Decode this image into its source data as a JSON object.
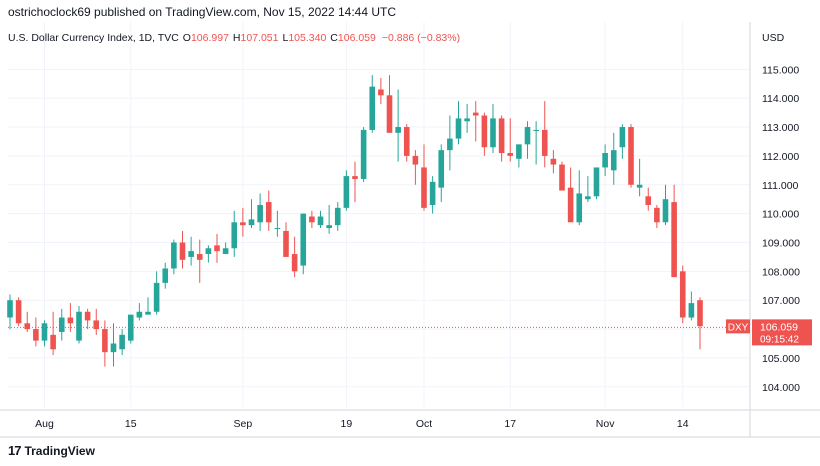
{
  "header": {
    "publisher_line": "ostrichoclock69 published on TradingView.com, Nov 15, 2022 14:44 UTC"
  },
  "footer": {
    "brand": "TradingView",
    "logo_icon": "tradingview-logo-icon"
  },
  "chart_data": {
    "type": "candlestick",
    "legend": {
      "symbol": "U.S. Dollar Currency Index, 1D, TVC",
      "open_label": "O",
      "open": "106.997",
      "high_label": "H",
      "high": "107.051",
      "low_label": "L",
      "low": "105.340",
      "close_label": "C",
      "close": "106.059",
      "change": "−0.886 (−0.83%)"
    },
    "currency_label": "USD",
    "ylim": [
      103.3,
      115.6
    ],
    "y_ticks": [
      "115.000",
      "114.000",
      "113.000",
      "112.000",
      "111.000",
      "110.000",
      "109.000",
      "108.000",
      "107.000",
      "106.000",
      "105.000",
      "104.000"
    ],
    "x_ticks": [
      {
        "label": "Aug",
        "index": 4
      },
      {
        "label": "15",
        "index": 14
      },
      {
        "label": "Sep",
        "index": 27
      },
      {
        "label": "19",
        "index": 39
      },
      {
        "label": "Oct",
        "index": 48
      },
      {
        "label": "17",
        "index": 58
      },
      {
        "label": "Nov",
        "index": 69
      },
      {
        "label": "14",
        "index": 78
      }
    ],
    "last_price": {
      "symbol": "DXY",
      "price": "106.059",
      "countdown": "09:15:42",
      "value": 106.059
    },
    "colors": {
      "up": "#26a69a",
      "down": "#ef5350"
    },
    "candles": [
      [
        106.4,
        107.2,
        106.0,
        107.0
      ],
      [
        107.0,
        107.1,
        106.1,
        106.2
      ],
      [
        106.2,
        106.6,
        105.9,
        106.0
      ],
      [
        106.0,
        106.4,
        105.4,
        105.6
      ],
      [
        105.6,
        106.3,
        105.4,
        106.2
      ],
      [
        105.8,
        106.6,
        105.1,
        105.3
      ],
      [
        105.9,
        106.7,
        105.6,
        106.4
      ],
      [
        106.4,
        106.9,
        105.9,
        106.2
      ],
      [
        105.6,
        106.8,
        105.5,
        106.6
      ],
      [
        106.6,
        106.7,
        106.0,
        106.3
      ],
      [
        106.3,
        106.7,
        105.8,
        106.0
      ],
      [
        106.0,
        106.3,
        104.7,
        105.2
      ],
      [
        105.2,
        106.2,
        104.7,
        105.5
      ],
      [
        105.3,
        106.0,
        105.1,
        105.8
      ],
      [
        105.6,
        106.5,
        105.5,
        106.5
      ],
      [
        106.4,
        106.9,
        106.3,
        106.6
      ],
      [
        106.5,
        107.1,
        106.5,
        106.6
      ],
      [
        106.6,
        108.0,
        106.5,
        107.6
      ],
      [
        107.6,
        108.3,
        107.4,
        108.1
      ],
      [
        108.1,
        109.1,
        107.9,
        109.0
      ],
      [
        109.0,
        109.4,
        108.1,
        108.4
      ],
      [
        108.5,
        109.2,
        108.2,
        108.7
      ],
      [
        108.6,
        109.1,
        107.6,
        108.4
      ],
      [
        108.6,
        108.9,
        108.3,
        108.8
      ],
      [
        108.9,
        109.3,
        108.3,
        108.7
      ],
      [
        108.6,
        109.0,
        108.6,
        108.8
      ],
      [
        108.8,
        110.1,
        108.5,
        109.7
      ],
      [
        109.7,
        110.2,
        109.2,
        109.6
      ],
      [
        109.6,
        110.5,
        109.5,
        109.8
      ],
      [
        109.7,
        110.7,
        109.4,
        110.3
      ],
      [
        110.4,
        110.8,
        109.4,
        109.7
      ],
      [
        109.5,
        110.1,
        109.2,
        109.5
      ],
      [
        109.4,
        109.7,
        108.5,
        108.5
      ],
      [
        108.6,
        109.2,
        107.8,
        108.0
      ],
      [
        108.2,
        110.0,
        107.9,
        110.0
      ],
      [
        109.9,
        110.1,
        109.5,
        109.7
      ],
      [
        109.6,
        110.1,
        109.5,
        109.9
      ],
      [
        109.5,
        110.3,
        109.3,
        109.6
      ],
      [
        109.6,
        110.4,
        109.4,
        110.2
      ],
      [
        110.2,
        111.5,
        110.1,
        111.3
      ],
      [
        111.3,
        111.8,
        110.4,
        111.2
      ],
      [
        111.2,
        113.0,
        111.1,
        112.9
      ],
      [
        112.9,
        114.8,
        112.8,
        114.4
      ],
      [
        114.3,
        114.7,
        113.8,
        114.1
      ],
      [
        114.1,
        114.8,
        112.8,
        112.8
      ],
      [
        112.8,
        114.3,
        111.8,
        113.0
      ],
      [
        113.0,
        113.1,
        111.8,
        112.0
      ],
      [
        112.0,
        112.2,
        111.0,
        111.7
      ],
      [
        111.6,
        112.4,
        110.1,
        110.2
      ],
      [
        110.3,
        111.3,
        110.0,
        111.1
      ],
      [
        110.9,
        112.4,
        110.4,
        112.2
      ],
      [
        112.2,
        113.4,
        111.5,
        112.6
      ],
      [
        112.6,
        113.9,
        112.4,
        113.3
      ],
      [
        113.2,
        113.8,
        112.8,
        113.3
      ],
      [
        113.5,
        113.9,
        112.5,
        113.4
      ],
      [
        113.4,
        113.5,
        112.0,
        112.3
      ],
      [
        112.3,
        113.8,
        112.1,
        113.3
      ],
      [
        113.3,
        113.4,
        111.8,
        112.1
      ],
      [
        112.1,
        113.3,
        111.8,
        112.0
      ],
      [
        111.9,
        112.4,
        111.6,
        112.4
      ],
      [
        112.4,
        113.2,
        111.9,
        113.0
      ],
      [
        112.9,
        113.2,
        111.7,
        112.9
      ],
      [
        112.9,
        113.9,
        111.6,
        112.0
      ],
      [
        111.9,
        112.2,
        111.4,
        111.7
      ],
      [
        111.7,
        111.8,
        110.8,
        110.8
      ],
      [
        110.9,
        111.6,
        109.8,
        109.7
      ],
      [
        109.7,
        111.5,
        109.6,
        110.7
      ],
      [
        110.5,
        111.3,
        110.4,
        110.6
      ],
      [
        110.6,
        111.6,
        110.5,
        111.6
      ],
      [
        111.6,
        112.4,
        111.3,
        112.1
      ],
      [
        111.5,
        112.8,
        111.0,
        112.2
      ],
      [
        112.3,
        113.1,
        111.9,
        113.0
      ],
      [
        113.0,
        113.1,
        110.9,
        111.0
      ],
      [
        110.9,
        111.9,
        110.6,
        111.0
      ],
      [
        110.6,
        110.9,
        110.1,
        110.3
      ],
      [
        110.2,
        110.3,
        109.5,
        109.7
      ],
      [
        109.7,
        111.0,
        109.6,
        110.5
      ],
      [
        110.4,
        111.0,
        107.8,
        107.8
      ],
      [
        108.0,
        108.2,
        106.2,
        106.4
      ],
      [
        106.4,
        107.3,
        106.3,
        106.9
      ],
      [
        107.0,
        107.1,
        105.3,
        106.1
      ]
    ]
  }
}
